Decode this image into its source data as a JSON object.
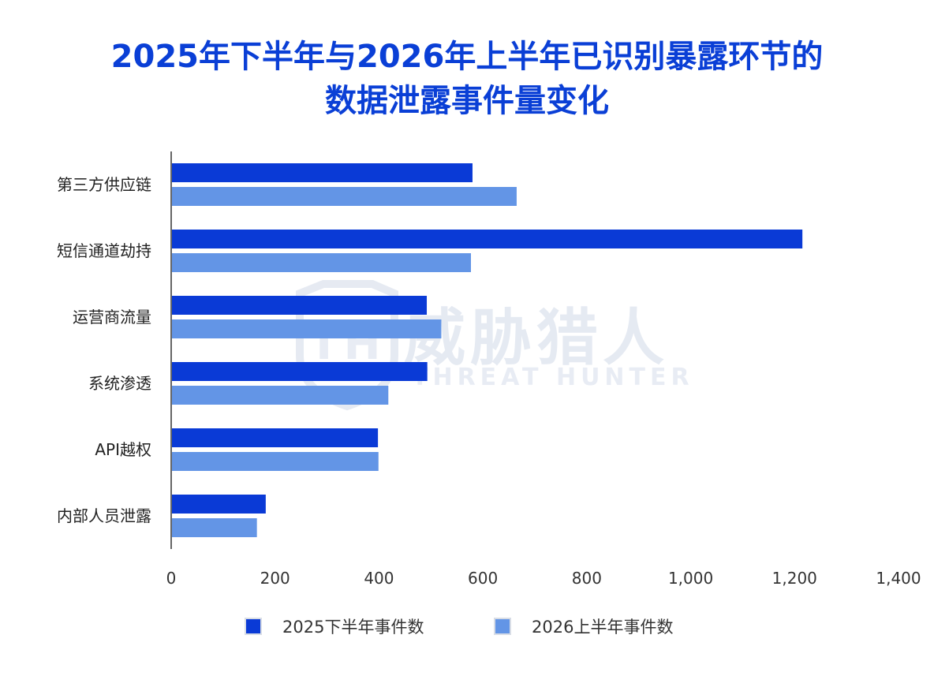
{
  "chart_data": {
    "type": "bar",
    "orientation": "horizontal",
    "title_lines": [
      "2025年下半年与2026年上半年已识别暴露环节的",
      "数据泄露事件量变化"
    ],
    "categories": [
      "第三方供应链",
      "短信通道劫持",
      "运营商流量",
      "系统渗透",
      "API越权",
      "内部人员泄露"
    ],
    "series": [
      {
        "name": "2025下半年事件数",
        "color": "#0a3ad6",
        "values": [
          580,
          1215,
          492,
          493,
          398,
          182
        ]
      },
      {
        "name": "2026上半年事件数",
        "color": "#6395e6",
        "values": [
          665,
          577,
          520,
          418,
          399,
          165
        ]
      }
    ],
    "xlim": [
      0,
      1400
    ],
    "xticks": [
      "0",
      "200",
      "400",
      "600",
      "800",
      "1,000",
      "1,200",
      "1,400"
    ],
    "xtick_values": [
      0,
      200,
      400,
      600,
      800,
      1000,
      1200,
      1400
    ],
    "grid": false,
    "legend_position": "bottom",
    "watermark": {
      "cn": "威胁猎人",
      "en": "THREAT HUNTER"
    }
  }
}
